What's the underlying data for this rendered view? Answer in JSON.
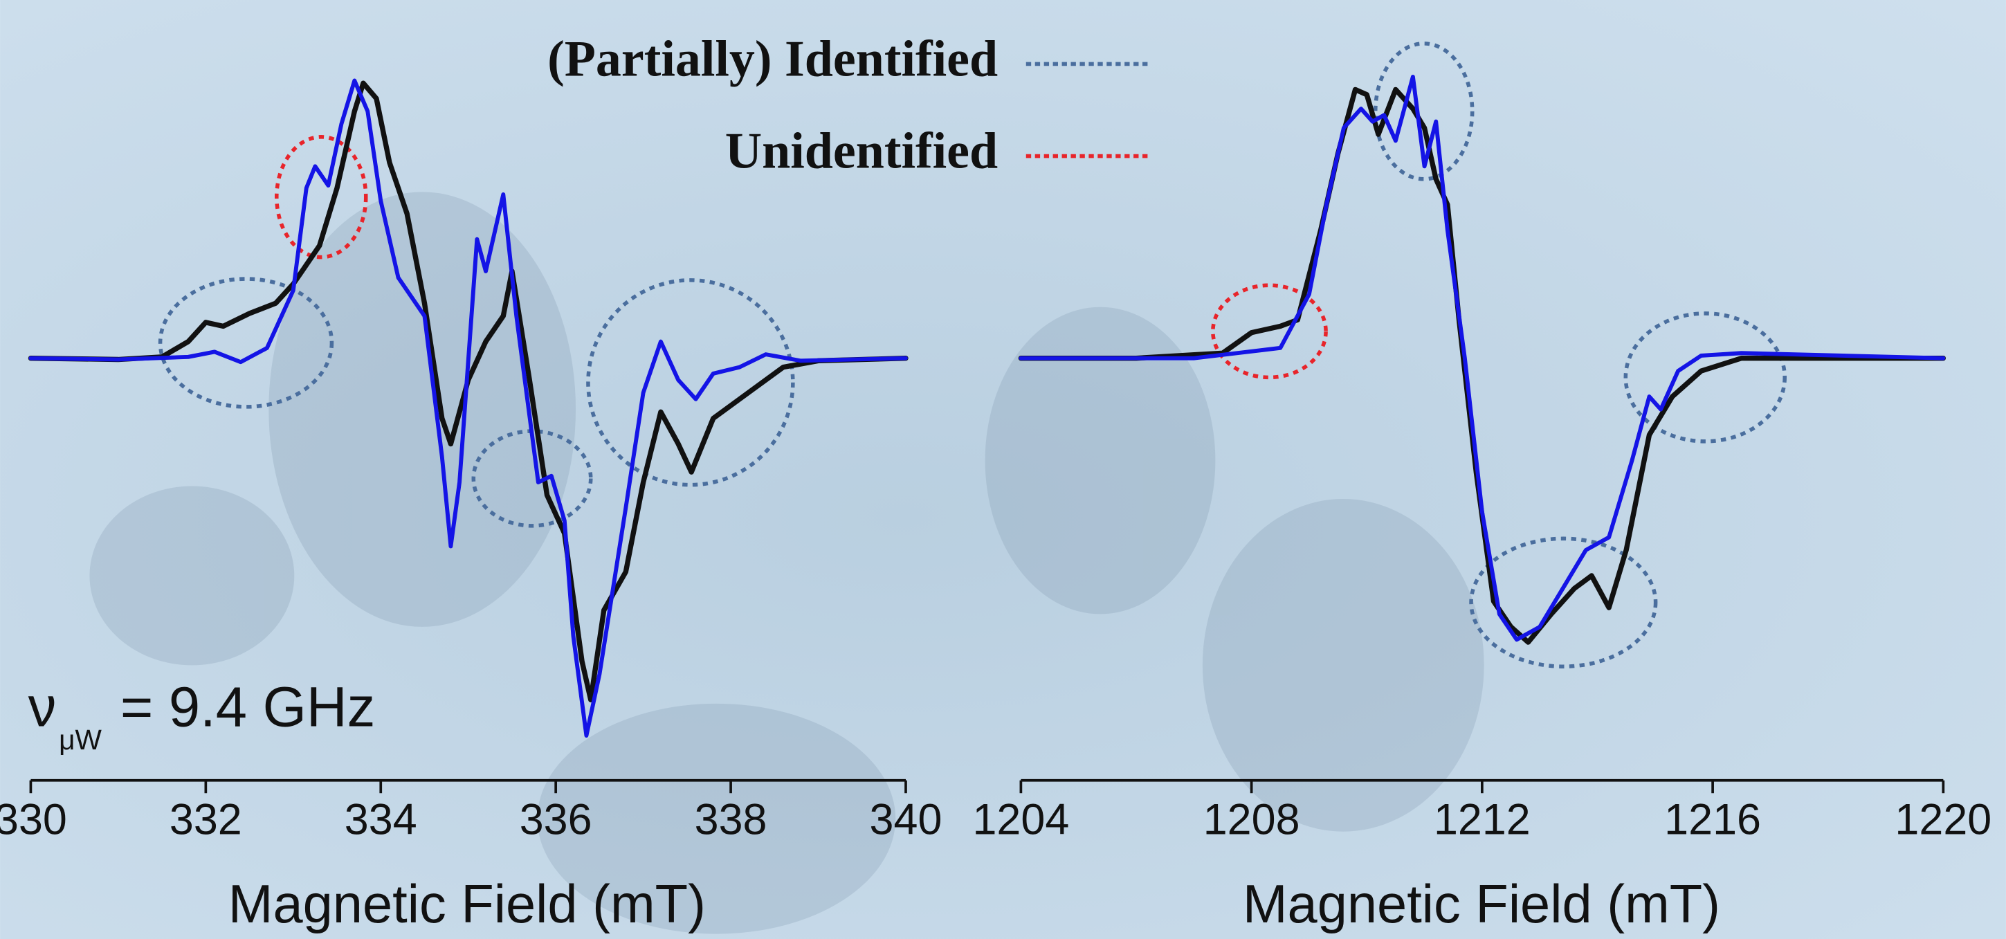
{
  "legend": {
    "partial": {
      "label": "(Partially) Identified",
      "color": "#4a6e9e"
    },
    "unidentified": {
      "label": "Unidentified",
      "color": "#e8242a"
    }
  },
  "chart_data": [
    {
      "type": "line",
      "xlabel": "Magnetic Field (mT)",
      "xlim": [
        330,
        340
      ],
      "xticks": [
        330,
        332,
        334,
        336,
        338,
        340
      ],
      "ylim": [
        -3.2,
        2.6
      ],
      "annotation": {
        "symbol": "ν",
        "subscript": "μW",
        "text": "= 9.4 GHz"
      },
      "series": [
        {
          "color": "#111111",
          "x": [
            330,
            331,
            331.5,
            331.8,
            332.0,
            332.2,
            332.5,
            332.8,
            333.0,
            333.3,
            333.5,
            333.7,
            333.8,
            333.95,
            334.1,
            334.3,
            334.5,
            334.7,
            334.8,
            335.0,
            335.2,
            335.4,
            335.5,
            335.7,
            335.9,
            336.1,
            336.3,
            336.4,
            336.55,
            336.8,
            337.0,
            337.2,
            337.4,
            337.55,
            337.8,
            338.2,
            338.6,
            339,
            340
          ],
          "values": [
            0,
            -0.01,
            0.01,
            0.13,
            0.28,
            0.25,
            0.35,
            0.43,
            0.58,
            0.88,
            1.33,
            1.93,
            2.15,
            2.03,
            1.53,
            1.13,
            0.43,
            -0.47,
            -0.67,
            -0.17,
            0.13,
            0.33,
            0.68,
            -0.17,
            -1.07,
            -1.37,
            -2.37,
            -2.67,
            -1.97,
            -1.67,
            -0.97,
            -0.42,
            -0.67,
            -0.89,
            -0.47,
            -0.27,
            -0.07,
            -0.02,
            0
          ]
        },
        {
          "color": "#1414e6",
          "x": [
            330,
            331,
            331.8,
            332.1,
            332.4,
            332.7,
            333.0,
            333.15,
            333.25,
            333.4,
            333.55,
            333.7,
            333.85,
            334.0,
            334.2,
            334.5,
            334.7,
            334.8,
            334.9,
            335.1,
            335.2,
            335.4,
            335.55,
            335.8,
            335.95,
            336.1,
            336.2,
            336.35,
            336.5,
            336.8,
            337.0,
            337.2,
            337.4,
            337.6,
            337.8,
            338.1,
            338.4,
            338.8,
            340
          ],
          "values": [
            0,
            -0.01,
            0.01,
            0.05,
            -0.03,
            0.08,
            0.53,
            1.33,
            1.5,
            1.35,
            1.83,
            2.17,
            1.93,
            1.23,
            0.63,
            0.33,
            -0.77,
            -1.47,
            -0.97,
            0.93,
            0.68,
            1.28,
            0.33,
            -0.97,
            -0.92,
            -1.27,
            -2.17,
            -2.95,
            -2.47,
            -1.17,
            -0.27,
            0.13,
            -0.17,
            -0.32,
            -0.12,
            -0.07,
            0.03,
            -0.02,
            0
          ]
        }
      ],
      "highlights": {
        "partial": [
          {
            "x": 332.46,
            "y": 0.12,
            "rx": 0.98,
            "ry": 0.5
          },
          {
            "x": 335.73,
            "y": -0.94,
            "rx": 0.67,
            "ry": 0.37
          },
          {
            "x": 337.54,
            "y": -0.19,
            "rx": 1.17,
            "ry": 0.8
          }
        ],
        "unidentified": [
          {
            "x": 333.32,
            "y": 1.26,
            "rx": 0.51,
            "ry": 0.47
          }
        ]
      }
    },
    {
      "type": "line",
      "xlabel": "Magnetic Field (mT)",
      "xlim": [
        1204,
        1220
      ],
      "xticks": [
        1204,
        1208,
        1212,
        1216,
        1220
      ],
      "ylim": [
        -3.2,
        2.6
      ],
      "series": [
        {
          "color": "#111111",
          "x": [
            1204,
            1206,
            1207.5,
            1208,
            1208.5,
            1208.8,
            1209.2,
            1209.5,
            1209.8,
            1210,
            1210.2,
            1210.5,
            1210.8,
            1211,
            1211.2,
            1211.4,
            1211.6,
            1211.9,
            1212.2,
            1212.5,
            1212.8,
            1213.2,
            1213.6,
            1213.9,
            1214.2,
            1214.5,
            1214.9,
            1215.3,
            1215.8,
            1216.5,
            1218,
            1220
          ],
          "values": [
            0,
            0,
            0.04,
            0.2,
            0.25,
            0.3,
            1.0,
            1.6,
            2.1,
            2.06,
            1.75,
            2.1,
            1.95,
            1.8,
            1.4,
            1.2,
            0.3,
            -0.9,
            -1.9,
            -2.1,
            -2.22,
            -2.0,
            -1.8,
            -1.7,
            -1.95,
            -1.5,
            -0.6,
            -0.3,
            -0.1,
            0,
            0,
            0
          ]
        },
        {
          "color": "#1414e6",
          "x": [
            1204,
            1207,
            1208.5,
            1209.0,
            1209.3,
            1209.6,
            1209.9,
            1210.1,
            1210.3,
            1210.5,
            1210.8,
            1211,
            1211.2,
            1211.4,
            1211.7,
            1212.0,
            1212.3,
            1212.6,
            1213.0,
            1213.4,
            1213.8,
            1214.2,
            1214.6,
            1214.9,
            1215.1,
            1215.4,
            1215.8,
            1216.5,
            1220
          ],
          "values": [
            0,
            0,
            0.08,
            0.5,
            1.2,
            1.8,
            1.95,
            1.85,
            1.9,
            1.7,
            2.2,
            1.5,
            1.85,
            1.0,
            0,
            -1.2,
            -2.0,
            -2.2,
            -2.1,
            -1.8,
            -1.5,
            -1.4,
            -0.8,
            -0.3,
            -0.4,
            -0.1,
            0.02,
            0.04,
            0
          ]
        }
      ],
      "highlights": {
        "partial": [
          {
            "x": 1210.99,
            "y": 1.93,
            "rx": 0.84,
            "ry": 0.53
          },
          {
            "x": 1215.87,
            "y": -0.15,
            "rx": 1.38,
            "ry": 0.5
          },
          {
            "x": 1213.41,
            "y": -1.91,
            "rx": 1.6,
            "ry": 0.5
          }
        ],
        "unidentified": [
          {
            "x": 1208.31,
            "y": 0.21,
            "rx": 0.98,
            "ry": 0.36
          }
        ]
      }
    }
  ]
}
